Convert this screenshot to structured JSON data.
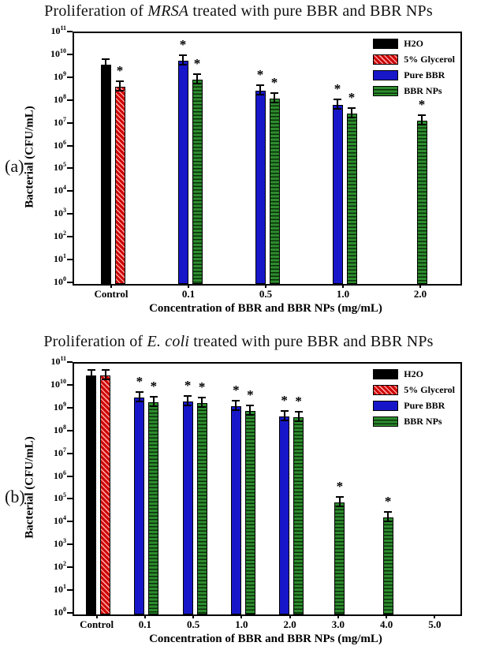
{
  "chart_data": [
    {
      "type": "bar",
      "panel_label": "(a)",
      "title_prefix": "Proliferation of ",
      "title_italic": "MRSA",
      "title_suffix": " treated with pure BBR and BBR NPs",
      "xlabel": "Concentration of BBR and BBR NPs (mg/mL)",
      "ylabel": "Bacterial (CFU/mL)",
      "yscale": "log",
      "ylim_exponents": [
        0,
        11
      ],
      "grid": false,
      "error_bars": true,
      "significance_marker": "*",
      "legend_position": "top-right",
      "categories": [
        "Control",
        "0.1",
        "0.5",
        "1.0",
        "2.0"
      ],
      "series": [
        {
          "name": "H2O",
          "color": "#000000",
          "hatch": "none",
          "hatch_color": "#000000",
          "values": [
            4000000000.0,
            null,
            null,
            null,
            null
          ],
          "significant": [
            false,
            null,
            null,
            null,
            null
          ]
        },
        {
          "name": "5% Glycerol",
          "color": "#cc0000",
          "hatch": "diagonal",
          "hatch_color": "#ff9d9d",
          "values": [
            450000000.0,
            null,
            null,
            null,
            null
          ],
          "significant": [
            true,
            null,
            null,
            null,
            null
          ]
        },
        {
          "name": "Pure BBR",
          "color": "#1717c9",
          "hatch": "none",
          "hatch_color": "#1717c9",
          "values": [
            null,
            6000000000.0,
            300000000.0,
            70000000.0,
            null
          ],
          "significant": [
            null,
            true,
            true,
            true,
            null
          ]
        },
        {
          "name": "BBR NPs",
          "color": "#2d8c2d",
          "hatch": "horizontal",
          "hatch_color": "#0a2e0a",
          "values": [
            null,
            900000000.0,
            130000000.0,
            30000000.0,
            15000000.0
          ],
          "significant": [
            null,
            true,
            true,
            true,
            true
          ]
        }
      ]
    },
    {
      "type": "bar",
      "panel_label": "(b)",
      "title_prefix": "Proliferation of ",
      "title_italic": "E. coli",
      "title_suffix": " treated with pure BBR and BBR NPs",
      "xlabel": "Concentration of BBR and BBR NPs (mg/mL)",
      "ylabel": "Bacterial (CFU/mL)",
      "yscale": "log",
      "ylim_exponents": [
        0,
        11
      ],
      "grid": false,
      "error_bars": true,
      "significance_marker": "*",
      "legend_position": "top-right",
      "categories": [
        "Control",
        "0.1",
        "0.5",
        "1.0",
        "2.0",
        "3.0",
        "4.0",
        "5.0"
      ],
      "series": [
        {
          "name": "H2O",
          "color": "#000000",
          "hatch": "none",
          "hatch_color": "#000000",
          "values": [
            30000000000.0,
            null,
            null,
            null,
            null,
            null,
            null,
            null
          ],
          "significant": [
            false,
            null,
            null,
            null,
            null,
            null,
            null,
            null
          ]
        },
        {
          "name": "5% Glycerol",
          "color": "#cc0000",
          "hatch": "diagonal",
          "hatch_color": "#ff9d9d",
          "values": [
            30000000000.0,
            null,
            null,
            null,
            null,
            null,
            null,
            null
          ],
          "significant": [
            false,
            null,
            null,
            null,
            null,
            null,
            null,
            null
          ]
        },
        {
          "name": "Pure BBR",
          "color": "#1717c9",
          "hatch": "none",
          "hatch_color": "#1717c9",
          "values": [
            null,
            3200000000.0,
            2200000000.0,
            1400000000.0,
            500000000.0,
            null,
            null,
            null
          ],
          "significant": [
            null,
            true,
            true,
            true,
            true,
            null,
            null,
            null
          ]
        },
        {
          "name": "BBR NPs",
          "color": "#2d8c2d",
          "hatch": "horizontal",
          "hatch_color": "#0a2e0a",
          "values": [
            null,
            2000000000.0,
            1800000000.0,
            850000000.0,
            450000000.0,
            80000.0,
            18000.0,
            null
          ],
          "significant": [
            null,
            true,
            true,
            true,
            true,
            true,
            true,
            null
          ]
        }
      ]
    }
  ]
}
